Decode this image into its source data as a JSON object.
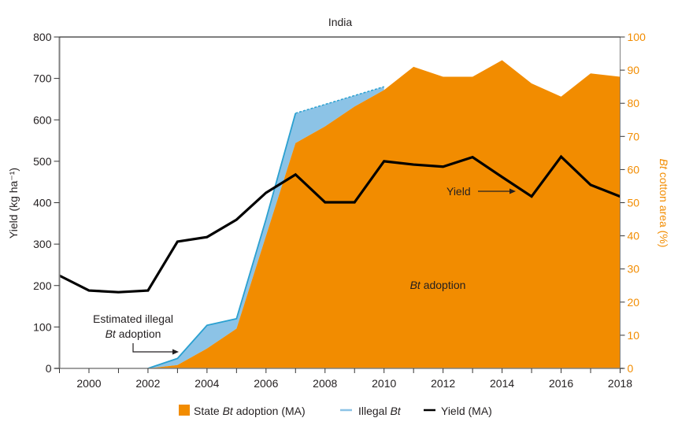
{
  "chart_data": {
    "type": "area",
    "title": "India",
    "xlabel": "",
    "ylabel": "Yield (kg ha⁻¹)",
    "ylabel_right_italic": "Bt",
    "ylabel_right_rest": " cotton area (%)",
    "xlim": [
      1999,
      2018
    ],
    "ylim": [
      0,
      800
    ],
    "ylim_right": [
      0,
      100
    ],
    "x_ticks": [
      2000,
      2002,
      2004,
      2006,
      2008,
      2010,
      2012,
      2014,
      2016,
      2018
    ],
    "y_ticks": [
      0,
      100,
      200,
      300,
      400,
      500,
      600,
      700,
      800
    ],
    "y_ticks_right": [
      0,
      10,
      20,
      30,
      40,
      50,
      60,
      70,
      80,
      90,
      100
    ],
    "grid": false,
    "legend_position": "bottom",
    "series": [
      {
        "name": "State Bt adoption (MA)",
        "axis": "right",
        "kind": "area",
        "color": "#f28c00",
        "x": [
          2002,
          2003,
          2004,
          2005,
          2006,
          2007,
          2008,
          2009,
          2010,
          2011,
          2012,
          2013,
          2014,
          2015,
          2016,
          2017,
          2018
        ],
        "values": [
          0,
          1,
          6,
          12,
          40,
          68,
          73,
          79,
          84,
          91,
          88,
          88,
          93,
          86,
          82,
          89,
          88
        ]
      },
      {
        "name": "Illegal Bt",
        "axis": "right",
        "kind": "area-upper-bound",
        "color": "#8cc3e6",
        "line_color": "#2aa0d0",
        "x": [
          2002,
          2003,
          2004,
          2005,
          2006,
          2007,
          2010
        ],
        "values": [
          0,
          3,
          13,
          15,
          45,
          77,
          85
        ],
        "dashed_from": 2007
      },
      {
        "name": "Yield (MA)",
        "axis": "left",
        "kind": "line",
        "color": "#000000",
        "x": [
          1999,
          2000,
          2001,
          2002,
          2003,
          2004,
          2005,
          2006,
          2007,
          2008,
          2009,
          2010,
          2011,
          2012,
          2013,
          2014,
          2015,
          2016,
          2017,
          2018
        ],
        "values": [
          224,
          188,
          184,
          188,
          306,
          317,
          359,
          424,
          468,
          401,
          401,
          500,
          492,
          487,
          510,
          462,
          415,
          511,
          443,
          415
        ]
      }
    ],
    "annotations": [
      {
        "id": "illegal",
        "line1": "Estimated illegal",
        "line2_italic": "Bt",
        "line2_rest": " adoption"
      },
      {
        "id": "yield",
        "text": "Yield"
      },
      {
        "id": "bt",
        "italic": "Bt",
        "rest": " adoption"
      }
    ],
    "legend": [
      {
        "pre": "State ",
        "italic": "Bt",
        "post": " adoption (MA)",
        "color": "#f28c00",
        "kind": "swatch"
      },
      {
        "pre": "Illegal ",
        "italic": "Bt",
        "post": "",
        "color": "#8cc3e6",
        "kind": "line"
      },
      {
        "pre": "Yield (MA)",
        "italic": "",
        "post": "",
        "color": "#000000",
        "kind": "line"
      }
    ]
  }
}
